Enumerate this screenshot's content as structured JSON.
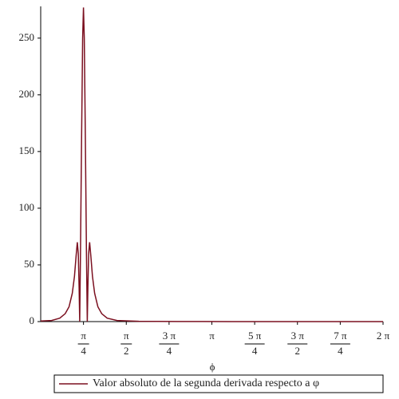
{
  "chart_data": {
    "type": "line",
    "x_label": "ϕ",
    "x": [
      0,
      0.2,
      0.35,
      0.45,
      0.52,
      0.58,
      0.62,
      0.65,
      0.672,
      0.69,
      0.705,
      0.716,
      0.73,
      0.75,
      0.77,
      0.785,
      0.8,
      0.82,
      0.84,
      0.855,
      0.866,
      0.88,
      0.898,
      0.92,
      0.95,
      0.99,
      1.05,
      1.12,
      1.22,
      1.4,
      1.8,
      2.5,
      3.5,
      5,
      6.2832
    ],
    "series": [
      {
        "name": "Valor absoluto de la segunda derivada respecto a φ",
        "color": "#7b1020",
        "values": [
          0.5,
          1,
          3,
          7,
          13,
          25,
          40,
          58,
          70,
          60,
          30,
          0,
          60,
          160,
          250,
          277,
          250,
          160,
          60,
          0,
          30,
          60,
          70,
          58,
          40,
          25,
          13,
          7,
          3,
          1,
          0.3,
          0.1,
          0,
          0,
          0
        ]
      }
    ],
    "xlim": [
      0,
      6.2832
    ],
    "ylim": [
      0,
      278
    ],
    "xticks": [
      {
        "value": 0.7854,
        "label": "π/4"
      },
      {
        "value": 1.5708,
        "label": "π/2"
      },
      {
        "value": 2.3562,
        "label": "3 π/4"
      },
      {
        "value": 3.1416,
        "label": "π"
      },
      {
        "value": 3.927,
        "label": "5 π/4"
      },
      {
        "value": 4.7124,
        "label": "3 π/2"
      },
      {
        "value": 5.4978,
        "label": "7 π/4"
      },
      {
        "value": 6.2832,
        "label": "2 π"
      }
    ],
    "yticks": [
      0,
      50,
      100,
      150,
      200,
      250
    ],
    "legend": "bottom"
  }
}
